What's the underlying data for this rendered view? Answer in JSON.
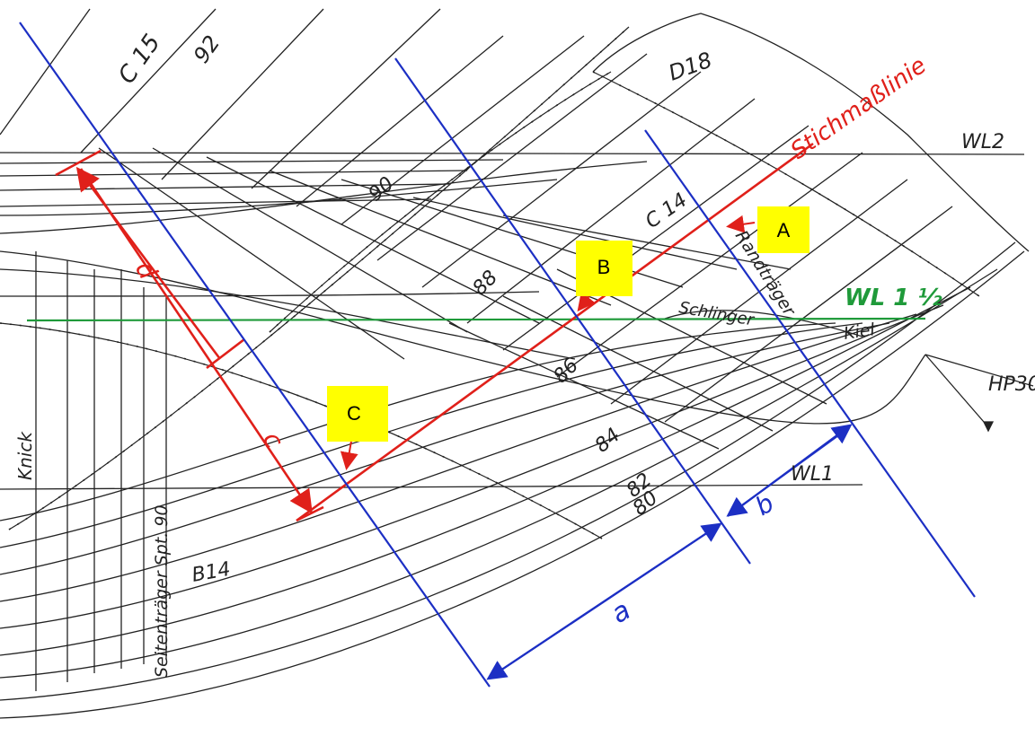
{
  "labels": {
    "c15": "C 15",
    "n92": "92",
    "d18": "D18",
    "stichmass": "Stichmaßlinie",
    "wl2": "WL2",
    "n90": "90",
    "c14": "C 14",
    "randtrager": "Randträger",
    "wl_half": "WL 1 ½",
    "schlinger": "Schlinger",
    "kiel": "Kiel",
    "n88": "88",
    "n86": "86",
    "n84": "84",
    "n82": "82",
    "n80": "80",
    "hp30": "HP30",
    "wl1": "WL1",
    "knick": "Knick",
    "seitentrager": "Seitenträger Spt. 90",
    "b14": "B14",
    "dim_a": "a",
    "dim_b": "b",
    "dim_c": "c",
    "dim_d": "d"
  },
  "markers": {
    "A": "A",
    "B": "B",
    "C": "C"
  },
  "colors": {
    "pencil": "#222222",
    "red": "#e0201a",
    "blue": "#1c2fc4",
    "green": "#1f9a3a",
    "marker": "#ffff00"
  }
}
